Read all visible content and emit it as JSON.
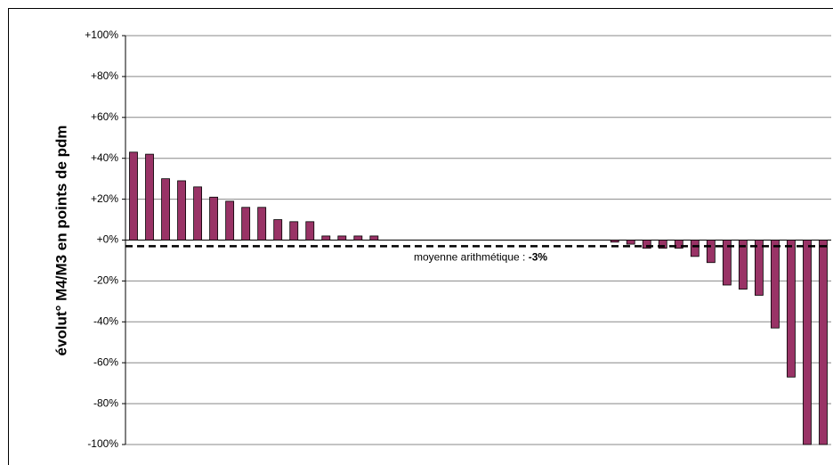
{
  "chart_data": {
    "type": "bar",
    "y_axis_label": "évolut° M4/M3 en points de pdm",
    "categories": [
      null,
      null,
      null,
      null,
      null,
      null,
      null,
      null,
      null,
      null,
      null,
      null,
      null,
      null,
      null,
      null,
      null,
      null,
      null,
      null,
      null,
      null,
      null,
      null,
      null,
      null,
      null,
      null,
      null,
      null,
      null,
      null,
      null,
      null,
      null,
      null,
      null,
      null,
      null,
      null,
      null,
      null,
      null,
      null
    ],
    "values": [
      43,
      42,
      30,
      29,
      26,
      21,
      19,
      16,
      16,
      10,
      9,
      9,
      2,
      2,
      2,
      2,
      0,
      0,
      0,
      0,
      0,
      0,
      0,
      0,
      0,
      0,
      0,
      0,
      0,
      0,
      -1,
      -2,
      -4,
      -4,
      -4,
      -8,
      -11,
      -22,
      -24,
      -27,
      -43,
      -67,
      -100,
      -100
    ],
    "color": "#993366",
    "ylim": [
      -100,
      100
    ],
    "yticks": [
      {
        "value": -100,
        "label": "-100%"
      },
      {
        "value": -80,
        "label": "-80%"
      },
      {
        "value": -60,
        "label": "-60%"
      },
      {
        "value": -40,
        "label": "-40%"
      },
      {
        "value": -20,
        "label": "-20%"
      },
      {
        "value": 0,
        "label": "+0%"
      },
      {
        "value": 20,
        "label": "+20%"
      },
      {
        "value": 40,
        "label": "+40%"
      },
      {
        "value": 60,
        "label": "+60%"
      },
      {
        "value": 80,
        "label": "+80%"
      },
      {
        "value": 100,
        "label": "+100%"
      }
    ],
    "grid": true,
    "mean": {
      "value": -3,
      "prefix": "moyenne arithmétique : ",
      "label": "-3%"
    }
  }
}
